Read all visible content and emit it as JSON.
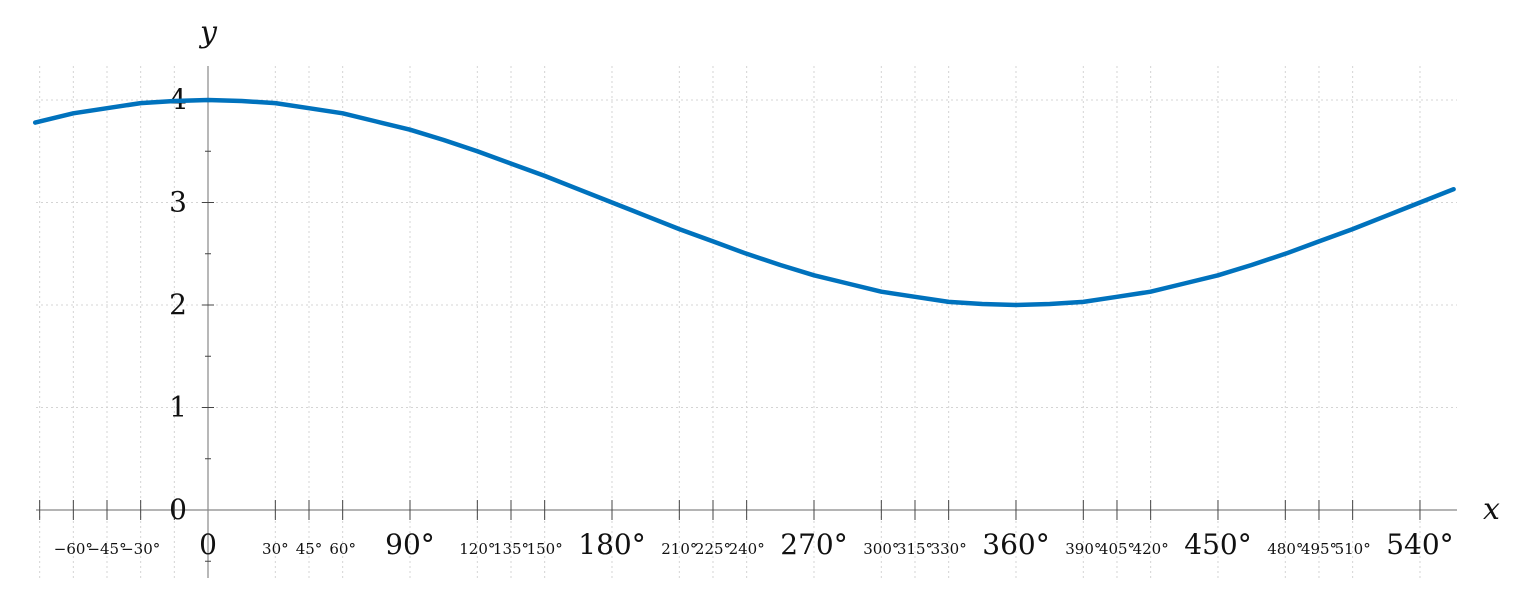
{
  "chart_data": {
    "type": "line",
    "title": "",
    "xlabel": "x",
    "ylabel": "y",
    "x_unit": "degrees",
    "xlim": [
      -77,
      555
    ],
    "ylim": [
      -0.3,
      4.2
    ],
    "grid": true,
    "x_ticks_major": [
      {
        "value": 0,
        "label": "0"
      },
      {
        "value": 90,
        "label": "90°"
      },
      {
        "value": 180,
        "label": "180°"
      },
      {
        "value": 270,
        "label": "270°"
      },
      {
        "value": 360,
        "label": "360°"
      },
      {
        "value": 450,
        "label": "450°"
      },
      {
        "value": 540,
        "label": "540°"
      }
    ],
    "x_ticks_minor": [
      {
        "value": -60,
        "label": "−60°"
      },
      {
        "value": -45,
        "label": "−45°"
      },
      {
        "value": -30,
        "label": "−30°"
      },
      {
        "value": 30,
        "label": "30°"
      },
      {
        "value": 45,
        "label": "45°"
      },
      {
        "value": 60,
        "label": "60°"
      },
      {
        "value": 120,
        "label": "120°"
      },
      {
        "value": 135,
        "label": "135°"
      },
      {
        "value": 150,
        "label": "150°"
      },
      {
        "value": 210,
        "label": "210°"
      },
      {
        "value": 225,
        "label": "225°"
      },
      {
        "value": 240,
        "label": "240°"
      },
      {
        "value": 300,
        "label": "300°"
      },
      {
        "value": 315,
        "label": "315°"
      },
      {
        "value": 330,
        "label": "330°"
      },
      {
        "value": 390,
        "label": "390°"
      },
      {
        "value": 405,
        "label": "405°"
      },
      {
        "value": 420,
        "label": "420°"
      },
      {
        "value": 480,
        "label": "480°"
      },
      {
        "value": 495,
        "label": "495°"
      },
      {
        "value": 510,
        "label": "510°"
      }
    ],
    "y_ticks": [
      {
        "value": 0,
        "label": "0"
      },
      {
        "value": 1,
        "label": "1"
      },
      {
        "value": 2,
        "label": "2"
      },
      {
        "value": 3,
        "label": "3"
      },
      {
        "value": 4,
        "label": "4"
      }
    ],
    "series": [
      {
        "color": "#0072bd",
        "x": [
          -77,
          -60,
          -45,
          -30,
          -15,
          0,
          15,
          30,
          45,
          60,
          75,
          90,
          105,
          120,
          135,
          150,
          165,
          180,
          195,
          210,
          225,
          240,
          255,
          270,
          285,
          300,
          315,
          330,
          345,
          360,
          375,
          390,
          405,
          420,
          435,
          450,
          465,
          480,
          495,
          510,
          525,
          540,
          555
        ],
        "y": [
          3.78,
          3.87,
          3.92,
          3.97,
          3.99,
          4.0,
          3.99,
          3.97,
          3.92,
          3.87,
          3.79,
          3.71,
          3.61,
          3.5,
          3.38,
          3.26,
          3.13,
          3.0,
          2.87,
          2.74,
          2.62,
          2.5,
          2.39,
          2.29,
          2.21,
          2.13,
          2.08,
          2.03,
          2.01,
          2.0,
          2.01,
          2.03,
          2.08,
          2.13,
          2.21,
          2.29,
          2.39,
          2.5,
          2.62,
          2.74,
          2.87,
          3.0,
          3.13
        ]
      }
    ]
  }
}
